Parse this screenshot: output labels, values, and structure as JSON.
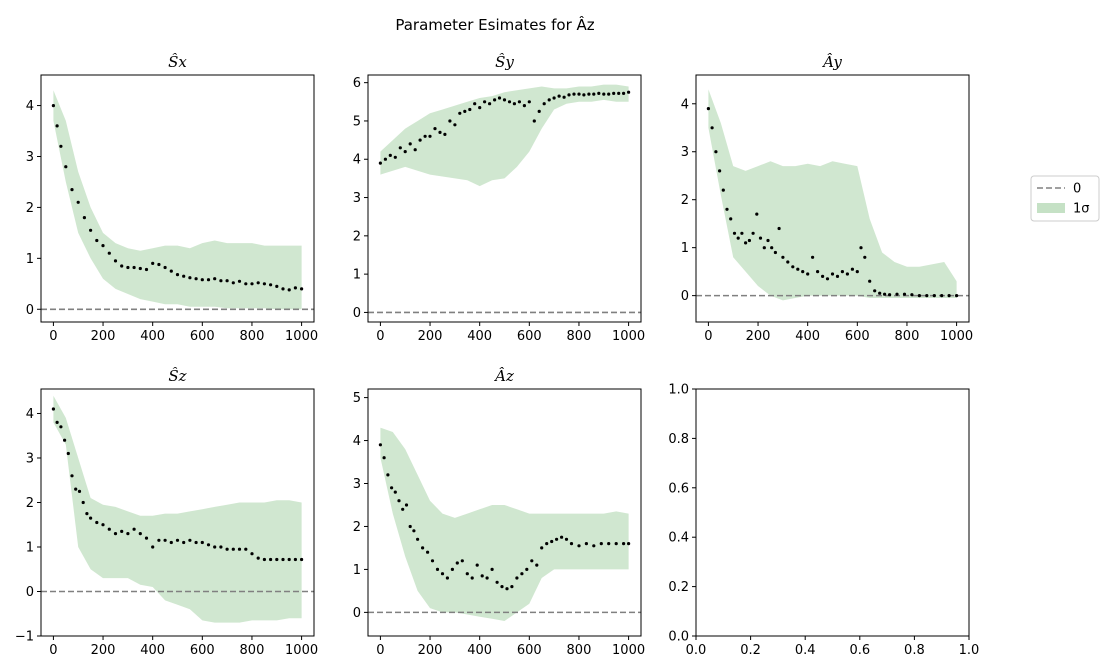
{
  "figure": {
    "title": "Parameter Esimates for Âz"
  },
  "legend": {
    "position": "right-outside",
    "entries": [
      {
        "label": "0",
        "style": "dashed-line",
        "color": "#808080"
      },
      {
        "label": "1σ",
        "style": "filled-patch",
        "color": "#9fcd9f"
      }
    ]
  },
  "colors": {
    "band": "#a9d3a9",
    "points": "#000000",
    "zero_line": "#808080"
  },
  "chart_data": [
    {
      "type": "scatter",
      "title": "Ŝx",
      "xlim": [
        -50,
        1050
      ],
      "ylim": [
        -0.25,
        4.6
      ],
      "xticks": [
        0,
        200,
        400,
        600,
        800,
        1000
      ],
      "yticks": [
        0,
        1,
        2,
        3,
        4
      ],
      "zero_line": 0,
      "series": [
        {
          "kind": "points",
          "x": [
            0,
            15,
            30,
            50,
            75,
            100,
            125,
            150,
            175,
            200,
            225,
            250,
            275,
            300,
            325,
            350,
            375,
            400,
            425,
            450,
            475,
            500,
            525,
            550,
            575,
            600,
            625,
            650,
            675,
            700,
            725,
            750,
            775,
            800,
            825,
            850,
            875,
            900,
            925,
            950,
            975,
            1000
          ],
          "y": [
            4.0,
            3.6,
            3.2,
            2.8,
            2.35,
            2.1,
            1.8,
            1.55,
            1.35,
            1.25,
            1.1,
            0.95,
            0.85,
            0.82,
            0.82,
            0.8,
            0.78,
            0.9,
            0.88,
            0.82,
            0.75,
            0.68,
            0.65,
            0.62,
            0.6,
            0.58,
            0.58,
            0.6,
            0.56,
            0.56,
            0.52,
            0.55,
            0.5,
            0.5,
            0.52,
            0.5,
            0.48,
            0.45,
            0.4,
            0.38,
            0.42,
            0.4
          ]
        },
        {
          "kind": "band",
          "x": [
            0,
            50,
            100,
            150,
            200,
            250,
            300,
            350,
            400,
            450,
            500,
            550,
            600,
            650,
            700,
            750,
            800,
            850,
            900,
            950,
            1000
          ],
          "upper": [
            4.3,
            3.7,
            2.7,
            2.0,
            1.5,
            1.3,
            1.2,
            1.15,
            1.2,
            1.25,
            1.25,
            1.2,
            1.3,
            1.35,
            1.3,
            1.3,
            1.3,
            1.25,
            1.25,
            1.25,
            1.25
          ],
          "lower": [
            3.7,
            2.5,
            1.5,
            1.0,
            0.6,
            0.4,
            0.3,
            0.2,
            0.15,
            0.1,
            0.1,
            0.05,
            0.05,
            0.05,
            0.02,
            0.02,
            0.02,
            0.02,
            0.0,
            0.0,
            0.0
          ]
        }
      ]
    },
    {
      "type": "scatter",
      "title": "Ŝy",
      "xlim": [
        -50,
        1050
      ],
      "ylim": [
        -0.25,
        6.2
      ],
      "xticks": [
        0,
        200,
        400,
        600,
        800,
        1000
      ],
      "yticks": [
        0,
        1,
        2,
        3,
        4,
        5,
        6
      ],
      "zero_line": 0,
      "series": [
        {
          "kind": "points",
          "x": [
            0,
            20,
            40,
            60,
            80,
            100,
            120,
            140,
            160,
            180,
            200,
            220,
            240,
            260,
            280,
            300,
            320,
            340,
            360,
            380,
            400,
            420,
            440,
            460,
            480,
            500,
            520,
            540,
            560,
            580,
            600,
            620,
            640,
            660,
            680,
            700,
            720,
            740,
            760,
            780,
            800,
            820,
            840,
            860,
            880,
            900,
            920,
            940,
            960,
            980,
            1000
          ],
          "y": [
            3.9,
            4.0,
            4.1,
            4.05,
            4.3,
            4.2,
            4.4,
            4.25,
            4.5,
            4.6,
            4.6,
            4.8,
            4.7,
            4.65,
            5.0,
            4.9,
            5.2,
            5.25,
            5.3,
            5.45,
            5.35,
            5.5,
            5.45,
            5.55,
            5.6,
            5.55,
            5.5,
            5.45,
            5.5,
            5.4,
            5.5,
            5.0,
            5.25,
            5.45,
            5.55,
            5.6,
            5.65,
            5.62,
            5.68,
            5.7,
            5.7,
            5.68,
            5.7,
            5.7,
            5.72,
            5.7,
            5.7,
            5.72,
            5.72,
            5.72,
            5.75
          ]
        },
        {
          "kind": "band",
          "x": [
            0,
            50,
            100,
            150,
            200,
            250,
            300,
            350,
            400,
            450,
            500,
            550,
            600,
            650,
            700,
            750,
            800,
            850,
            900,
            950,
            1000
          ],
          "upper": [
            4.2,
            4.5,
            4.8,
            5.0,
            5.2,
            5.3,
            5.4,
            5.5,
            5.6,
            5.65,
            5.75,
            5.8,
            5.85,
            5.9,
            5.85,
            5.85,
            5.9,
            5.9,
            5.95,
            5.95,
            5.9
          ],
          "lower": [
            3.6,
            3.7,
            3.8,
            3.7,
            3.6,
            3.55,
            3.5,
            3.45,
            3.3,
            3.45,
            3.5,
            3.8,
            4.2,
            4.8,
            5.3,
            5.45,
            5.5,
            5.5,
            5.55,
            5.5,
            5.5
          ]
        }
      ]
    },
    {
      "type": "scatter",
      "title": "Ây",
      "xlim": [
        -50,
        1050
      ],
      "ylim": [
        -0.55,
        4.6
      ],
      "xticks": [
        0,
        200,
        400,
        600,
        800,
        1000
      ],
      "yticks": [
        0,
        1,
        2,
        3,
        4
      ],
      "zero_line": 0,
      "series": [
        {
          "kind": "points",
          "x": [
            0,
            15,
            30,
            45,
            60,
            75,
            90,
            105,
            120,
            135,
            150,
            165,
            180,
            195,
            210,
            225,
            240,
            255,
            270,
            285,
            300,
            320,
            340,
            360,
            380,
            400,
            420,
            440,
            460,
            480,
            500,
            520,
            540,
            560,
            580,
            600,
            615,
            630,
            650,
            670,
            690,
            710,
            730,
            760,
            790,
            820,
            850,
            880,
            910,
            940,
            970,
            1000
          ],
          "y": [
            3.9,
            3.5,
            3.0,
            2.6,
            2.2,
            1.8,
            1.6,
            1.3,
            1.2,
            1.3,
            1.1,
            1.15,
            1.3,
            1.7,
            1.2,
            1.0,
            1.15,
            1.0,
            0.9,
            1.4,
            0.8,
            0.7,
            0.6,
            0.55,
            0.5,
            0.45,
            0.8,
            0.5,
            0.4,
            0.35,
            0.45,
            0.4,
            0.5,
            0.45,
            0.55,
            0.5,
            1.0,
            0.8,
            0.3,
            0.1,
            0.05,
            0.03,
            0.02,
            0.03,
            0.03,
            0.02,
            0.0,
            0.0,
            0.0,
            0.0,
            0.0,
            0.0
          ]
        },
        {
          "kind": "band",
          "x": [
            0,
            50,
            100,
            150,
            200,
            250,
            300,
            350,
            400,
            450,
            500,
            550,
            600,
            650,
            700,
            750,
            800,
            850,
            900,
            950,
            1000
          ],
          "upper": [
            4.3,
            3.6,
            2.7,
            2.6,
            2.7,
            2.8,
            2.7,
            2.7,
            2.75,
            2.7,
            2.8,
            2.75,
            2.7,
            1.6,
            0.9,
            0.7,
            0.6,
            0.6,
            0.65,
            0.7,
            0.3
          ],
          "lower": [
            3.5,
            2.1,
            0.8,
            0.5,
            0.2,
            0.0,
            -0.1,
            -0.05,
            0.0,
            0.0,
            0.0,
            0.0,
            0.0,
            -0.05,
            -0.05,
            -0.05,
            -0.05,
            -0.05,
            -0.05,
            -0.05,
            -0.05
          ]
        }
      ]
    },
    {
      "type": "scatter",
      "title": "Ŝz",
      "xlim": [
        -50,
        1050
      ],
      "ylim": [
        -1.0,
        4.55
      ],
      "xticks": [
        0,
        200,
        400,
        600,
        800,
        1000
      ],
      "yticks": [
        -1,
        0,
        1,
        2,
        3,
        4
      ],
      "zero_line": 0,
      "series": [
        {
          "kind": "points",
          "x": [
            0,
            15,
            30,
            45,
            60,
            75,
            90,
            105,
            120,
            135,
            150,
            175,
            200,
            225,
            250,
            275,
            300,
            325,
            350,
            375,
            400,
            425,
            450,
            475,
            500,
            525,
            550,
            575,
            600,
            625,
            650,
            675,
            700,
            725,
            750,
            775,
            800,
            825,
            850,
            875,
            900,
            925,
            950,
            975,
            1000
          ],
          "y": [
            4.1,
            3.8,
            3.7,
            3.4,
            3.1,
            2.6,
            2.3,
            2.25,
            2.0,
            1.75,
            1.65,
            1.55,
            1.5,
            1.4,
            1.3,
            1.35,
            1.3,
            1.4,
            1.3,
            1.2,
            1.0,
            1.15,
            1.15,
            1.1,
            1.15,
            1.1,
            1.15,
            1.1,
            1.1,
            1.05,
            1.0,
            1.0,
            0.95,
            0.95,
            0.95,
            0.95,
            0.85,
            0.75,
            0.72,
            0.72,
            0.72,
            0.72,
            0.72,
            0.72,
            0.72
          ]
        },
        {
          "kind": "band",
          "x": [
            0,
            50,
            100,
            150,
            200,
            250,
            300,
            350,
            400,
            450,
            500,
            550,
            600,
            650,
            700,
            750,
            800,
            850,
            900,
            950,
            1000
          ],
          "upper": [
            4.4,
            3.9,
            3.0,
            2.1,
            1.95,
            1.9,
            1.8,
            1.7,
            1.7,
            1.75,
            1.75,
            1.8,
            1.85,
            1.9,
            1.95,
            2.0,
            2.0,
            2.0,
            2.05,
            2.05,
            2.0
          ],
          "lower": [
            3.8,
            3.3,
            1.0,
            0.5,
            0.3,
            0.3,
            0.3,
            0.15,
            0.1,
            -0.2,
            -0.3,
            -0.4,
            -0.65,
            -0.7,
            -0.7,
            -0.7,
            -0.65,
            -0.65,
            -0.65,
            -0.6,
            -0.6
          ]
        }
      ]
    },
    {
      "type": "scatter",
      "title": "Âz",
      "xlim": [
        -50,
        1050
      ],
      "ylim": [
        -0.55,
        5.2
      ],
      "xticks": [
        0,
        200,
        400,
        600,
        800,
        1000
      ],
      "yticks": [
        0,
        1,
        2,
        3,
        4,
        5
      ],
      "zero_line": 0,
      "series": [
        {
          "kind": "points",
          "x": [
            0,
            15,
            30,
            45,
            60,
            75,
            90,
            105,
            120,
            135,
            150,
            170,
            190,
            210,
            230,
            250,
            270,
            290,
            310,
            330,
            350,
            370,
            390,
            410,
            430,
            450,
            470,
            490,
            510,
            530,
            550,
            570,
            590,
            610,
            630,
            650,
            670,
            690,
            710,
            730,
            750,
            770,
            800,
            830,
            860,
            890,
            920,
            950,
            980,
            1000
          ],
          "y": [
            3.9,
            3.6,
            3.2,
            2.9,
            2.8,
            2.6,
            2.4,
            2.5,
            2.0,
            1.9,
            1.7,
            1.5,
            1.4,
            1.2,
            1.0,
            0.9,
            0.8,
            1.0,
            1.15,
            1.2,
            0.9,
            0.8,
            1.1,
            0.85,
            0.8,
            1.0,
            0.7,
            0.6,
            0.55,
            0.6,
            0.8,
            0.9,
            1.0,
            1.2,
            1.1,
            1.5,
            1.6,
            1.65,
            1.7,
            1.75,
            1.7,
            1.6,
            1.55,
            1.6,
            1.55,
            1.6,
            1.6,
            1.6,
            1.6,
            1.6
          ]
        },
        {
          "kind": "band",
          "x": [
            0,
            50,
            100,
            150,
            200,
            250,
            300,
            350,
            400,
            450,
            500,
            550,
            600,
            650,
            700,
            750,
            800,
            850,
            900,
            950,
            1000
          ],
          "upper": [
            4.3,
            4.2,
            3.8,
            3.2,
            2.6,
            2.3,
            2.2,
            2.3,
            2.4,
            2.5,
            2.5,
            2.4,
            2.3,
            2.3,
            2.3,
            2.3,
            2.3,
            2.3,
            2.3,
            2.35,
            2.3
          ],
          "lower": [
            3.6,
            2.3,
            1.3,
            0.5,
            0.1,
            0.0,
            0.0,
            -0.05,
            -0.1,
            -0.15,
            -0.2,
            0.0,
            0.2,
            0.8,
            1.0,
            1.0,
            1.0,
            1.0,
            1.0,
            1.0,
            1.0
          ]
        }
      ]
    },
    {
      "type": "scatter",
      "title": "",
      "xlim": [
        0,
        1
      ],
      "ylim": [
        0,
        1
      ],
      "xticks": [
        0.0,
        0.2,
        0.4,
        0.6,
        0.8,
        1.0
      ],
      "yticks": [
        0.0,
        0.2,
        0.4,
        0.6,
        0.8,
        1.0
      ],
      "xtick_labels": [
        "0.0",
        "0.2",
        "0.4",
        "0.6",
        "0.8",
        "1.0"
      ],
      "ytick_labels": [
        "0.0",
        "0.2",
        "0.4",
        "0.6",
        "0.8",
        "1.0"
      ],
      "series": []
    }
  ]
}
